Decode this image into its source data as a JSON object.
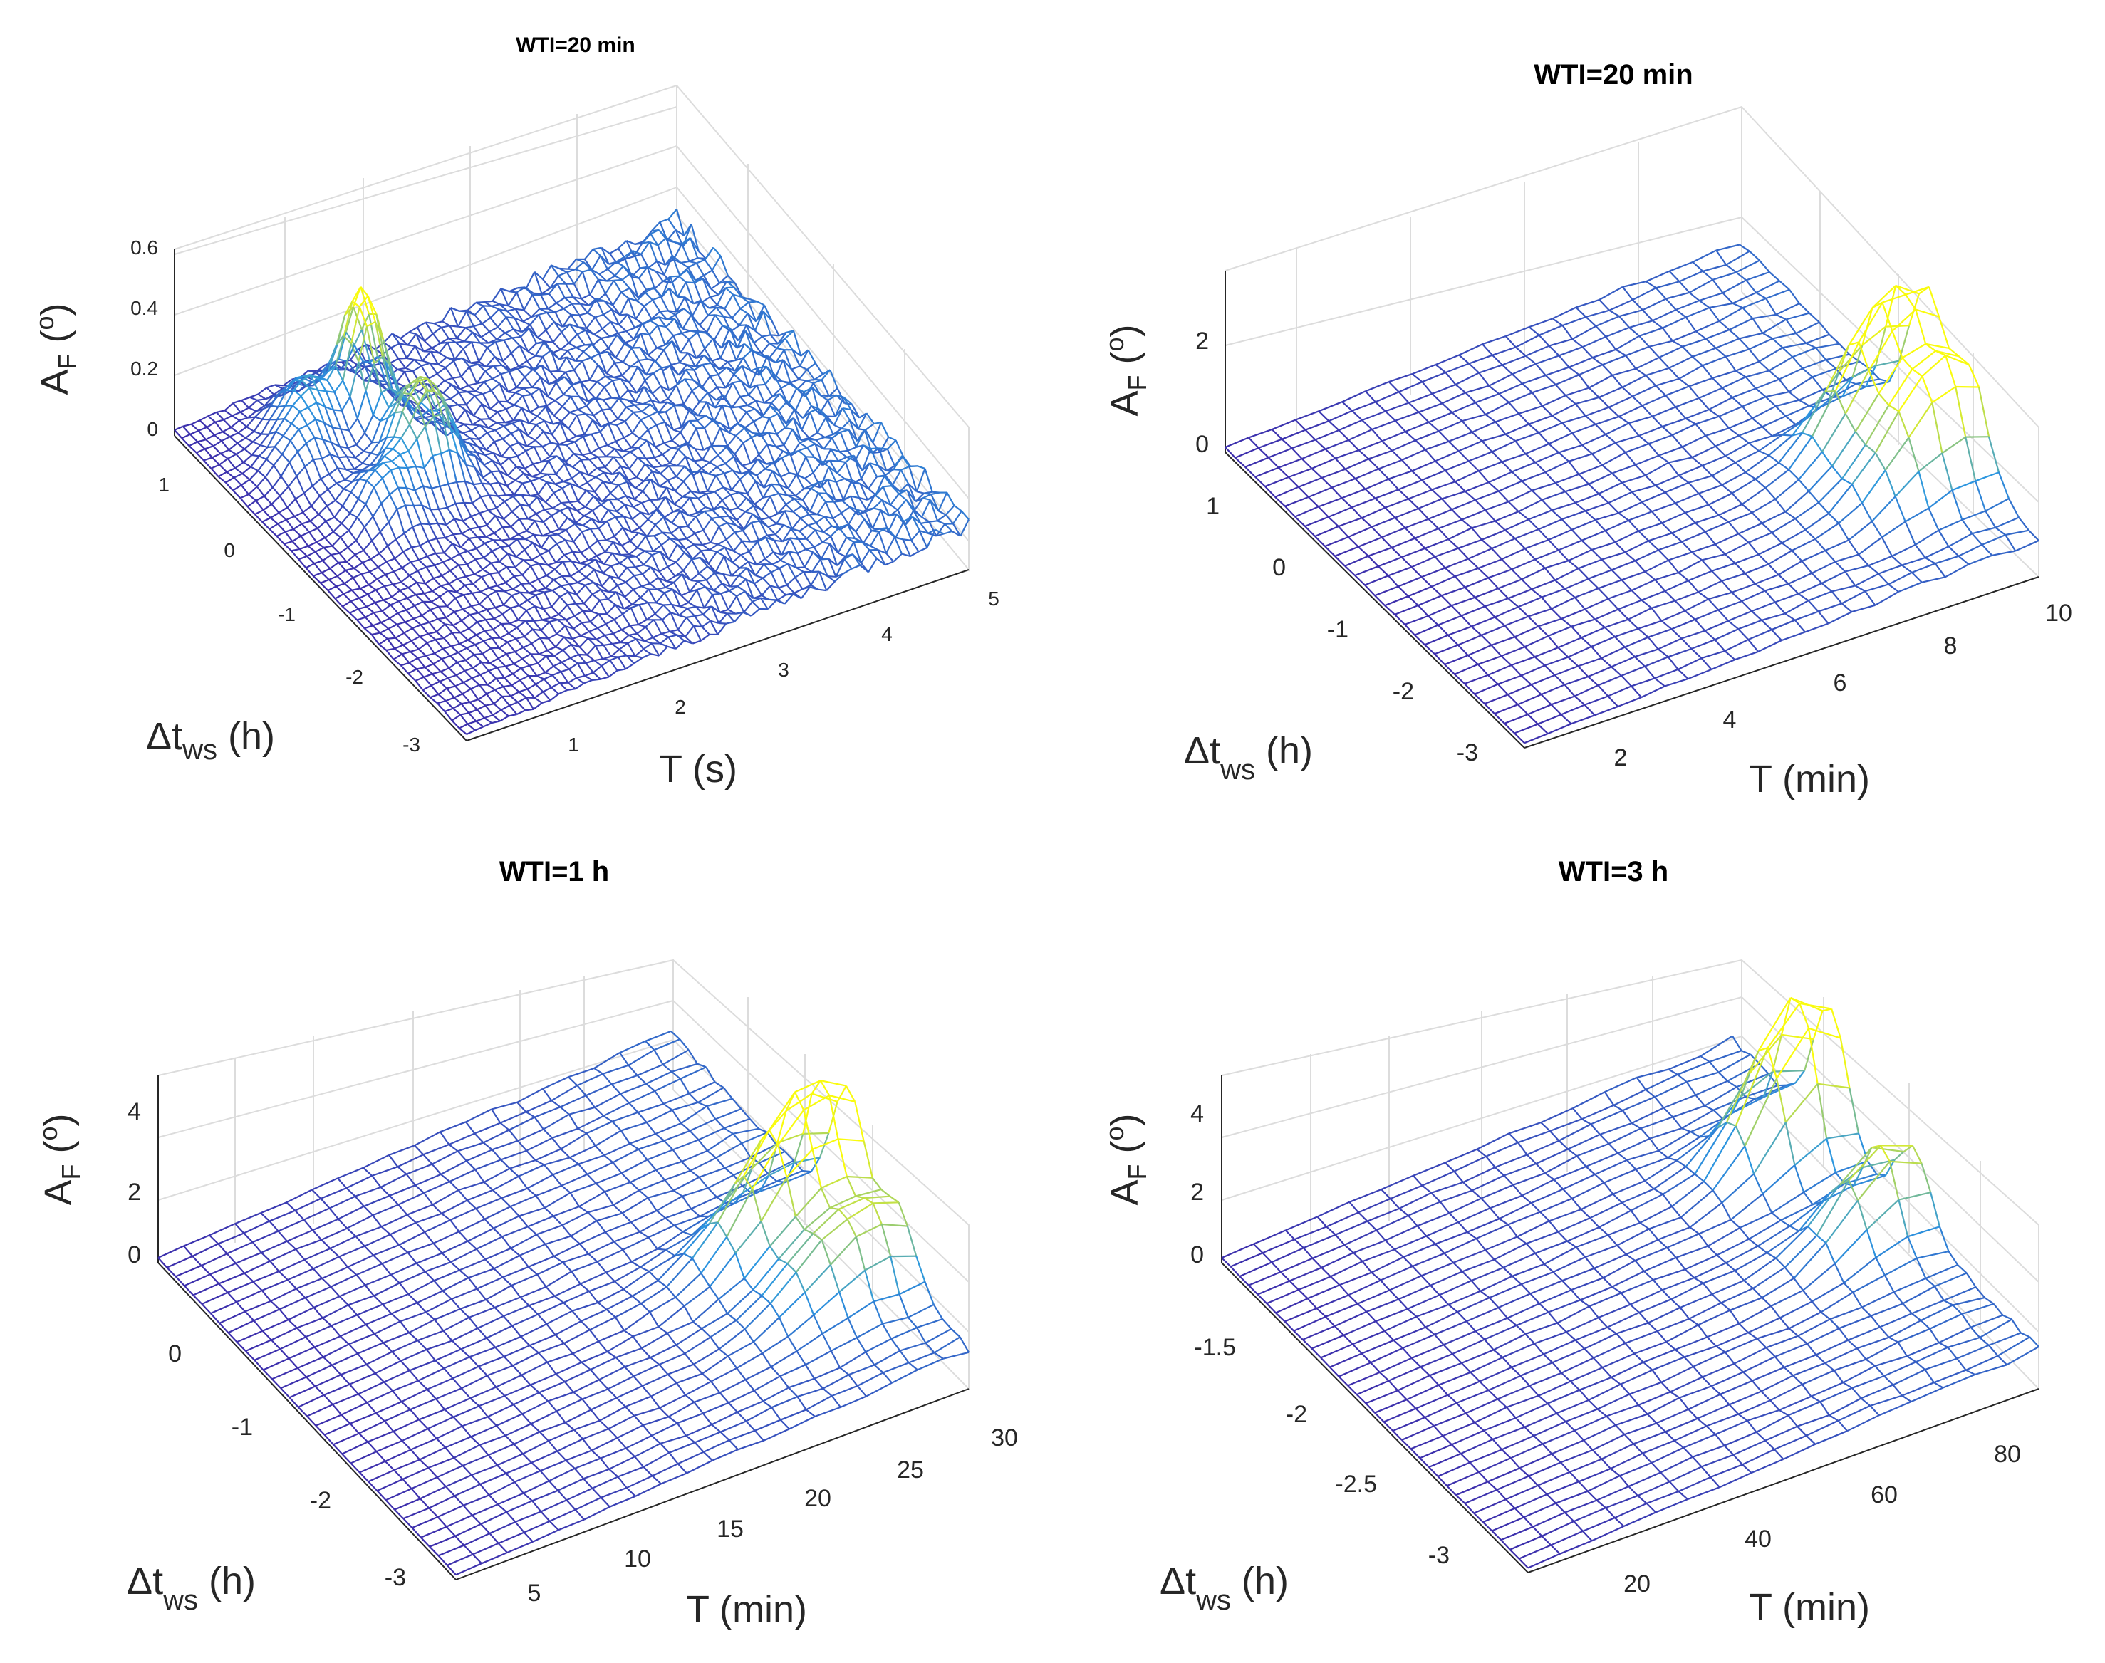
{
  "figure_title": "",
  "chart_data": [
    {
      "type": "surface",
      "title": "WTI=20 min",
      "zlabel": "A_F (o)",
      "ylabel": "Δt_ws (h)",
      "xlabel": "T (s)",
      "x_ticks": [
        "1",
        "2",
        "3",
        "4",
        "5"
      ],
      "y_ticks": [
        "1",
        "0",
        "-1",
        "-2",
        "-3"
      ],
      "z_ticks": [
        "0",
        "0.2",
        "0.4",
        "0.6"
      ],
      "xlim": [
        0,
        5
      ],
      "ylim": [
        -3.4,
        1.4
      ],
      "zlim": [
        0,
        0.6
      ],
      "grid": true,
      "surface_features": [
        {
          "T": 1.4,
          "dt": 0.6,
          "A": 0.42,
          "width": 0.08
        },
        {
          "T": 0.9,
          "dt": 0.7,
          "A": 0.18,
          "width": 0.12
        },
        {
          "T": 0.6,
          "dt": 0.3,
          "A": 0.12,
          "width": 0.12
        },
        {
          "T": 1.45,
          "dt": -0.3,
          "A": 0.32,
          "width": 0.12
        },
        {
          "T": 0.9,
          "dt": -0.6,
          "A": 0.16,
          "width": 0.12
        }
      ],
      "colors": {
        "low": "#3e26a8",
        "mid": "#2c97e0",
        "high": "#f9fb0e"
      }
    },
    {
      "type": "surface",
      "title": "WTI=20 min",
      "zlabel": "A_F (o)",
      "ylabel": "Δt_ws (h)",
      "xlabel": "T (min)",
      "x_ticks": [
        "2",
        "4",
        "6",
        "8",
        "10"
      ],
      "y_ticks": [
        "1",
        "0",
        "-1",
        "-2",
        "-3"
      ],
      "z_ticks": [
        "0",
        "2"
      ],
      "xlim": [
        0,
        10
      ],
      "ylim": [
        -3.4,
        1.4
      ],
      "zlim": [
        0,
        3.5
      ],
      "grid": true,
      "surface_features": [
        {
          "T": 9.5,
          "dt": -1.6,
          "A": 3.0,
          "width": 0.3
        },
        {
          "T": 9.5,
          "dt": -2.3,
          "A": 2.2,
          "width": 0.3
        }
      ],
      "colors": {
        "low": "#3e26a8",
        "mid": "#2c97e0",
        "high": "#f9fb0e"
      }
    },
    {
      "type": "surface",
      "title": "WTI=1 h",
      "zlabel": "A_F (o)",
      "ylabel": "Δt_ws (h)",
      "xlabel": "T (min)",
      "x_ticks": [
        "5",
        "10",
        "15",
        "20",
        "25",
        "30"
      ],
      "y_ticks": [
        "0",
        "-1",
        "-2",
        "-3"
      ],
      "z_ticks": [
        "0",
        "2",
        "4"
      ],
      "xlim": [
        0,
        30
      ],
      "ylim": [
        -3.4,
        0.8
      ],
      "zlim": [
        0,
        5
      ],
      "grid": true,
      "surface_features": [
        {
          "T": 28,
          "dt": -1.7,
          "A": 4.2,
          "width": 0.35
        },
        {
          "T": 28,
          "dt": -2.4,
          "A": 2.2,
          "width": 0.35
        }
      ],
      "colors": {
        "low": "#3e26a8",
        "mid": "#2c97e0",
        "high": "#f9fb0e"
      }
    },
    {
      "type": "surface",
      "title": "WTI=3 h",
      "zlabel": "A_F (o)",
      "ylabel": "Δt_ws (h)",
      "xlabel": "T (min)",
      "x_ticks": [
        "20",
        "40",
        "60",
        "80"
      ],
      "y_ticks": [
        "-1.5",
        "-2",
        "-2.5",
        "-3"
      ],
      "z_ticks": [
        "0",
        "2",
        "4"
      ],
      "xlim": [
        0,
        90
      ],
      "ylim": [
        -3.4,
        -1.2
      ],
      "zlim": [
        0,
        5
      ],
      "grid": true,
      "surface_features": [
        {
          "T": 85,
          "dt": -1.9,
          "A": 4.3,
          "width": 0.25
        },
        {
          "T": 85,
          "dt": -2.5,
          "A": 2.4,
          "width": 0.25
        }
      ],
      "colors": {
        "low": "#3e26a8",
        "mid": "#2c97e0",
        "high": "#f9fb0e"
      }
    }
  ]
}
